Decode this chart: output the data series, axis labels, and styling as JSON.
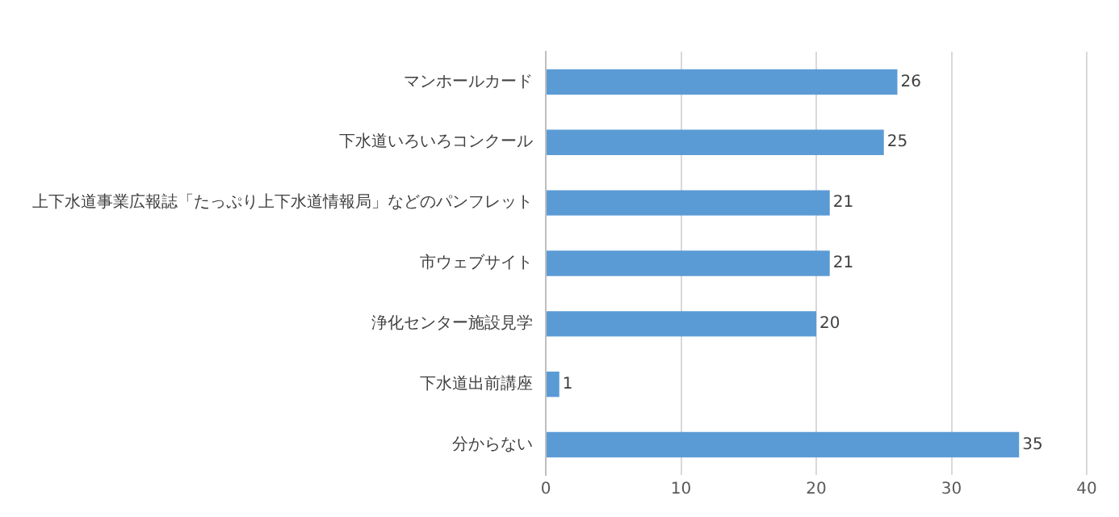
{
  "chart_data": {
    "type": "bar",
    "orientation": "horizontal",
    "categories": [
      "マンホールカード",
      "下水道いろいろコンクール",
      "上下水道事業広報誌「たっぷり上下水道情報局」などのパンフレット",
      "市ウェブサイト",
      "浄化センター施設見学",
      "下水道出前講座",
      "分からない"
    ],
    "values": [
      26,
      25,
      21,
      21,
      20,
      1,
      35
    ],
    "color": "#5b9bd5",
    "xlim": [
      0,
      40
    ],
    "xticks": [
      0,
      10,
      20,
      30,
      40
    ],
    "grid": "x",
    "data_labels": true
  }
}
